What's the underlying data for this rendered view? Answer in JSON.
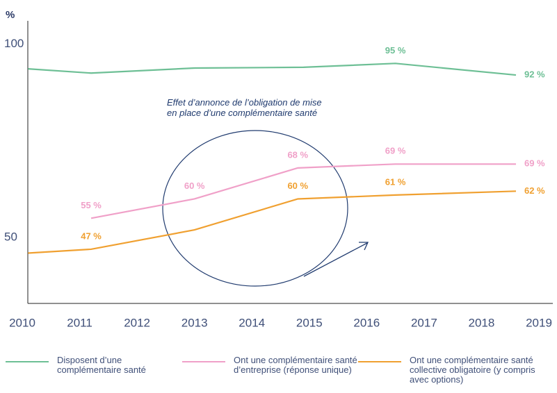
{
  "chart_data": {
    "type": "line",
    "y_label": "%",
    "annotation": "Effet d’annonce de l’obligation de mise en place d’une complémentaire santé",
    "xlim": [
      2010,
      2019
    ],
    "xticks": [
      2010,
      2011,
      2012,
      2013,
      2014,
      2015,
      2016,
      2017,
      2018,
      2019
    ],
    "ylim": [
      33,
      106
    ],
    "yticks": [
      50,
      100
    ],
    "series": [
      {
        "name": "Disposent d’une complémentaire santé",
        "color": "#6dbf95",
        "x": [
          2010.1,
          2011.2,
          2013.0,
          2014.9,
          2016.5,
          2018.6
        ],
        "values": [
          93.6,
          92.5,
          93.8,
          94.0,
          95,
          92
        ],
        "value_labels": [
          null,
          null,
          null,
          null,
          "95 %",
          "92 %"
        ]
      },
      {
        "name": "Ont une complémentaire santé d’entreprise (réponse unique)",
        "color": "#f0a0c8",
        "x": [
          2011.2,
          2013.0,
          2014.8,
          2016.5,
          2018.6
        ],
        "values": [
          55,
          60,
          68,
          69,
          69
        ],
        "value_labels": [
          "55 %",
          "60 %",
          "68 %",
          "69 %",
          "69 %"
        ]
      },
      {
        "name": "Ont une complémentaire santé collective obligatoire (y compris avec options)",
        "color": "#f0a030",
        "x": [
          2010.1,
          2011.2,
          2013.0,
          2014.8,
          2016.5,
          2018.6
        ],
        "values": [
          46,
          47,
          52,
          60,
          61,
          62
        ],
        "value_labels": [
          null,
          "47 %",
          null,
          "60 %",
          "61 %",
          "62 %"
        ]
      }
    ]
  }
}
